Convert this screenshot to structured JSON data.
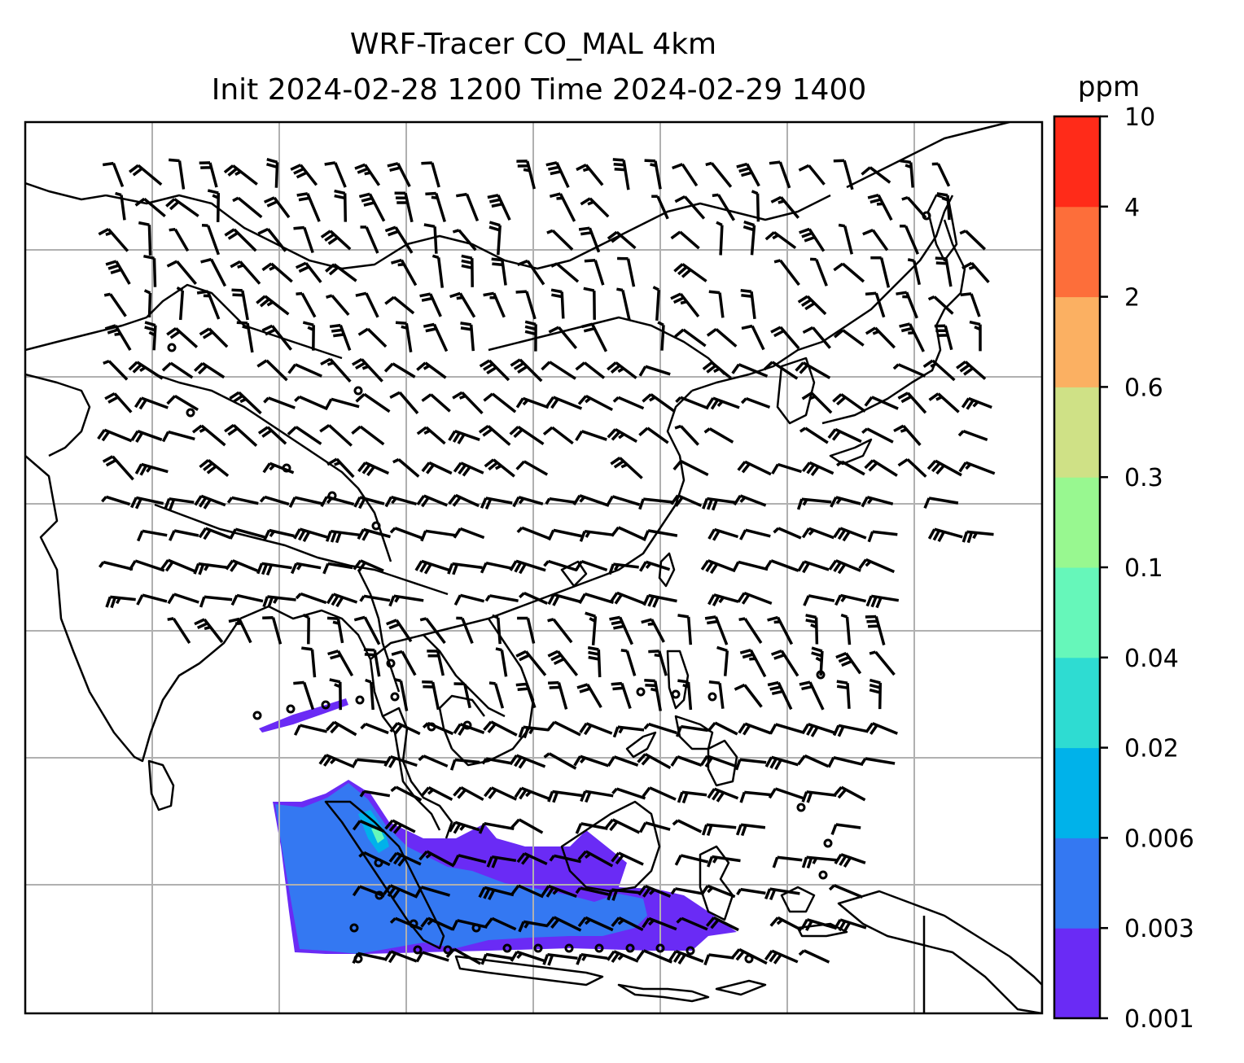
{
  "chart_data": {
    "type": "heatmap",
    "title_line1": "WRF-Tracer CO_MAL 4km",
    "title_line2": "Init 2024-02-28 1200 Time 2024-02-29 1400",
    "colorbar": {
      "unit": "ppm",
      "levels": [
        "0.001",
        "0.003",
        "0.006",
        "0.02",
        "0.04",
        "0.1",
        "0.3",
        "0.6",
        "2",
        "4",
        "10"
      ],
      "colors": [
        "#6a2bf5",
        "#3478f2",
        "#00b2ea",
        "#2edcd2",
        "#66f7ba",
        "#98f890",
        "#cfe186",
        "#fbb062",
        "#fd6e3a",
        "#ff2b19"
      ]
    },
    "map": {
      "gridlines": true,
      "features": [
        "coastlines",
        "country borders",
        "wind barbs"
      ],
      "plume_color_dominant": "#3478f2"
    }
  }
}
